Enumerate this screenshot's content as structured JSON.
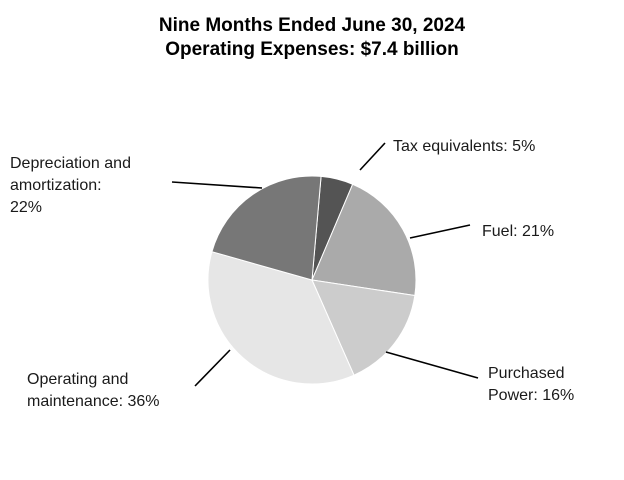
{
  "chart_data": {
    "type": "pie",
    "title": "Nine Months Ended June 30, 2024",
    "subtitle": "Operating Expenses: $7.4 billion",
    "slices": [
      {
        "name": "Tax equivalents",
        "value": 5,
        "label_lines": [
          "Tax equivalents: 5%"
        ],
        "color": "#545454"
      },
      {
        "name": "Fuel",
        "value": 21,
        "label_lines": [
          "Fuel: 21%"
        ],
        "color": "#aaaaaa"
      },
      {
        "name": "Purchased Power",
        "value": 16,
        "label_lines": [
          "Purchased",
          "Power: 16%"
        ],
        "color": "#cccccc"
      },
      {
        "name": "Operating and maintenance",
        "value": 36,
        "label_lines": [
          "Operating and",
          "maintenance: 36%"
        ],
        "color": "#e6e6e6"
      },
      {
        "name": "Depreciation and amortization",
        "value": 22,
        "label_lines": [
          "Depreciation and",
          "amortization:",
          "22%"
        ],
        "color": "#777777"
      }
    ],
    "start_angle_deg": 5,
    "direction": "clockwise"
  }
}
